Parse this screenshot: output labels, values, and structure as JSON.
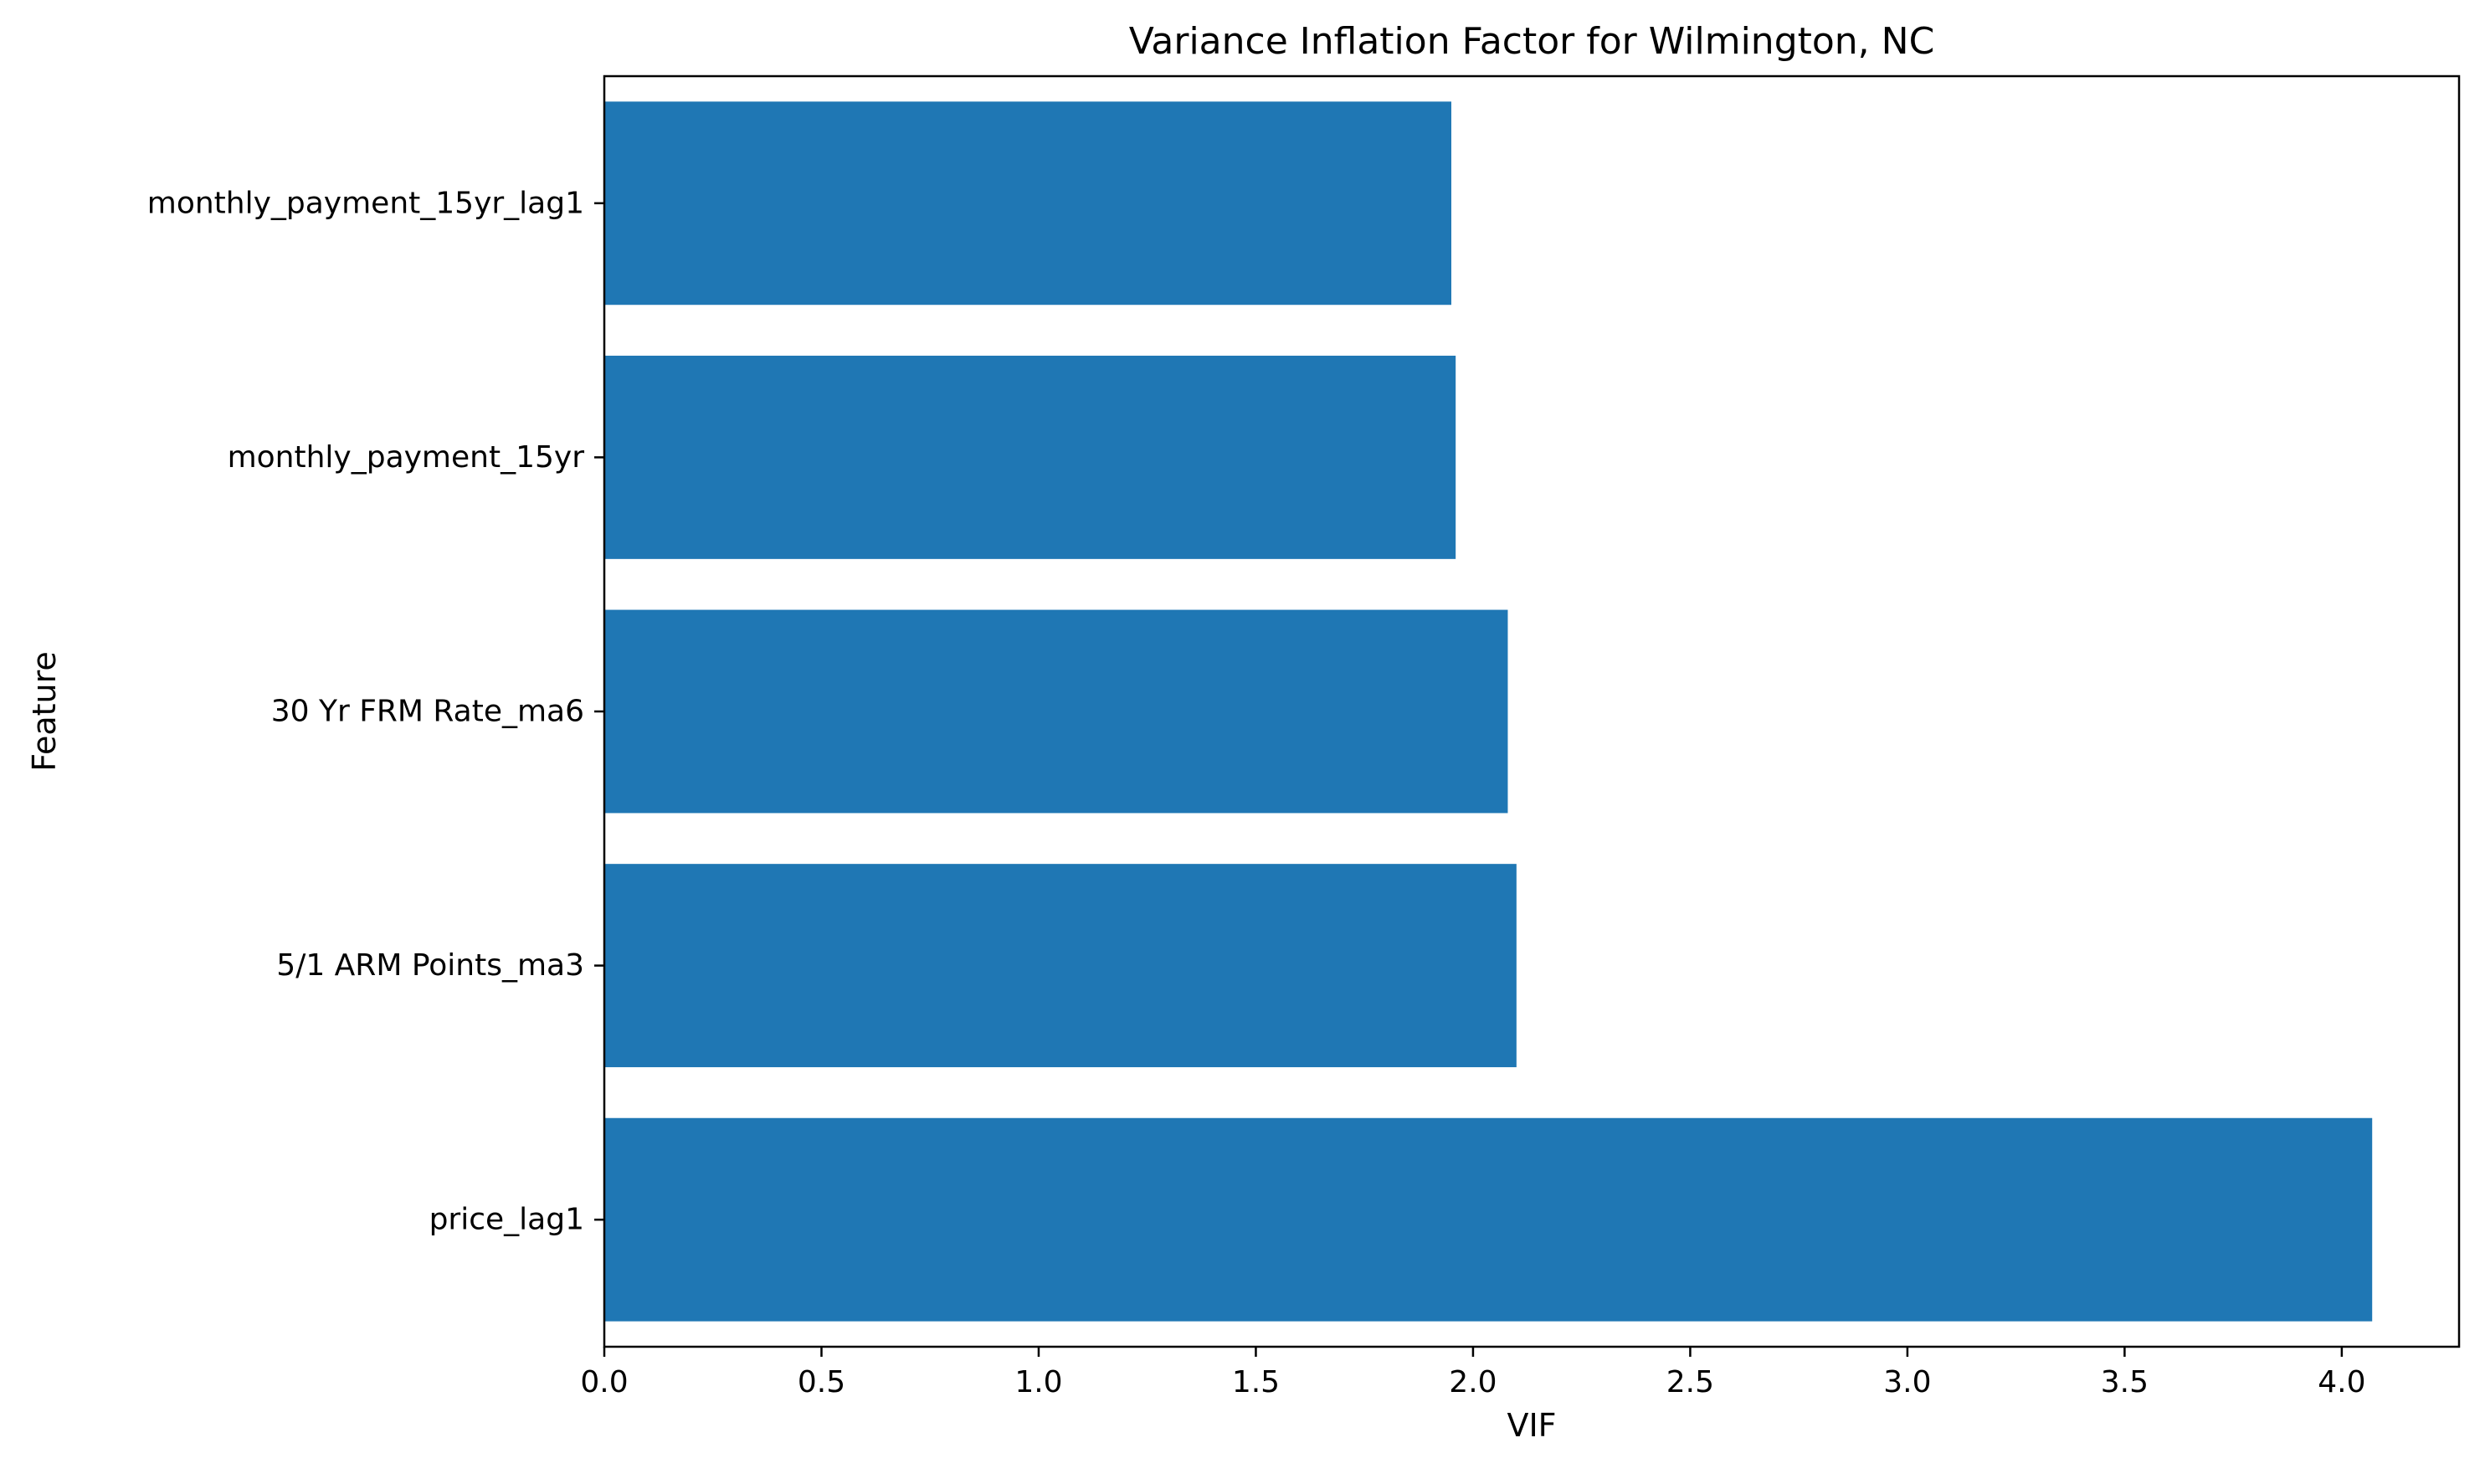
{
  "chart_data": {
    "type": "bar",
    "orientation": "horizontal",
    "title": "Variance Inflation Factor for Wilmington, NC",
    "xlabel": "VIF",
    "ylabel": "Feature",
    "categories": [
      "price_lag1",
      "5/1 ARM Points_ma3",
      "30 Yr FRM Rate_ma6",
      "monthly_payment_15yr",
      "monthly_payment_15yr_lag1"
    ],
    "values": [
      4.07,
      2.1,
      2.08,
      1.96,
      1.95
    ],
    "xlim": [
      0,
      4.27
    ],
    "xticks": [
      0.0,
      0.5,
      1.0,
      1.5,
      2.0,
      2.5,
      3.0,
      3.5,
      4.0
    ],
    "xtick_labels": [
      "0.0",
      "0.5",
      "1.0",
      "1.5",
      "2.0",
      "2.5",
      "3.0",
      "3.5",
      "4.0"
    ],
    "bar_color": "#1f77b4",
    "grid": false,
    "legend": false
  }
}
